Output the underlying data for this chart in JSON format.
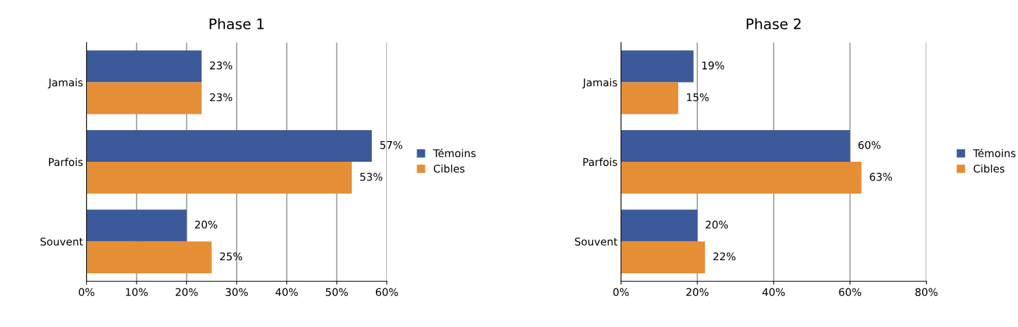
{
  "chart_data": [
    {
      "type": "bar",
      "orientation": "horizontal",
      "title": "Phase 1",
      "categories": [
        "Jamais",
        "Parfois",
        "Souvent"
      ],
      "series": [
        {
          "name": "Témoins",
          "color": "#3c5a9a",
          "values": [
            23,
            57,
            20
          ],
          "value_labels": [
            "23%",
            "57%",
            "20%"
          ]
        },
        {
          "name": "Cibles",
          "color": "#e58e35",
          "values": [
            23,
            53,
            25
          ],
          "value_labels": [
            "23%",
            "53%",
            "25%"
          ]
        }
      ],
      "xlim": [
        0,
        60
      ],
      "xticks": [
        {
          "value": 0,
          "label": "0%"
        },
        {
          "value": 10,
          "label": "10%"
        },
        {
          "value": 20,
          "label": "20%"
        },
        {
          "value": 30,
          "label": "30%"
        },
        {
          "value": 40,
          "label": "40%"
        },
        {
          "value": 50,
          "label": "50%"
        },
        {
          "value": 60,
          "label": "60%"
        }
      ],
      "grid": "x",
      "legend": "right"
    },
    {
      "type": "bar",
      "orientation": "horizontal",
      "title": "Phase 2",
      "categories": [
        "Jamais",
        "Parfois",
        "Souvent"
      ],
      "series": [
        {
          "name": "Témoins",
          "color": "#3c5a9a",
          "values": [
            19,
            60,
            20
          ],
          "value_labels": [
            "19%",
            "60%",
            "20%"
          ]
        },
        {
          "name": "Cibles",
          "color": "#e58e35",
          "values": [
            15,
            63,
            22
          ],
          "value_labels": [
            "15%",
            "63%",
            "22%"
          ]
        }
      ],
      "xlim": [
        0,
        80
      ],
      "xticks": [
        {
          "value": 0,
          "label": "0%"
        },
        {
          "value": 20,
          "label": "20%"
        },
        {
          "value": 40,
          "label": "40%"
        },
        {
          "value": 60,
          "label": "60%"
        },
        {
          "value": 80,
          "label": "80%"
        }
      ],
      "grid": "x",
      "legend": "right"
    }
  ]
}
